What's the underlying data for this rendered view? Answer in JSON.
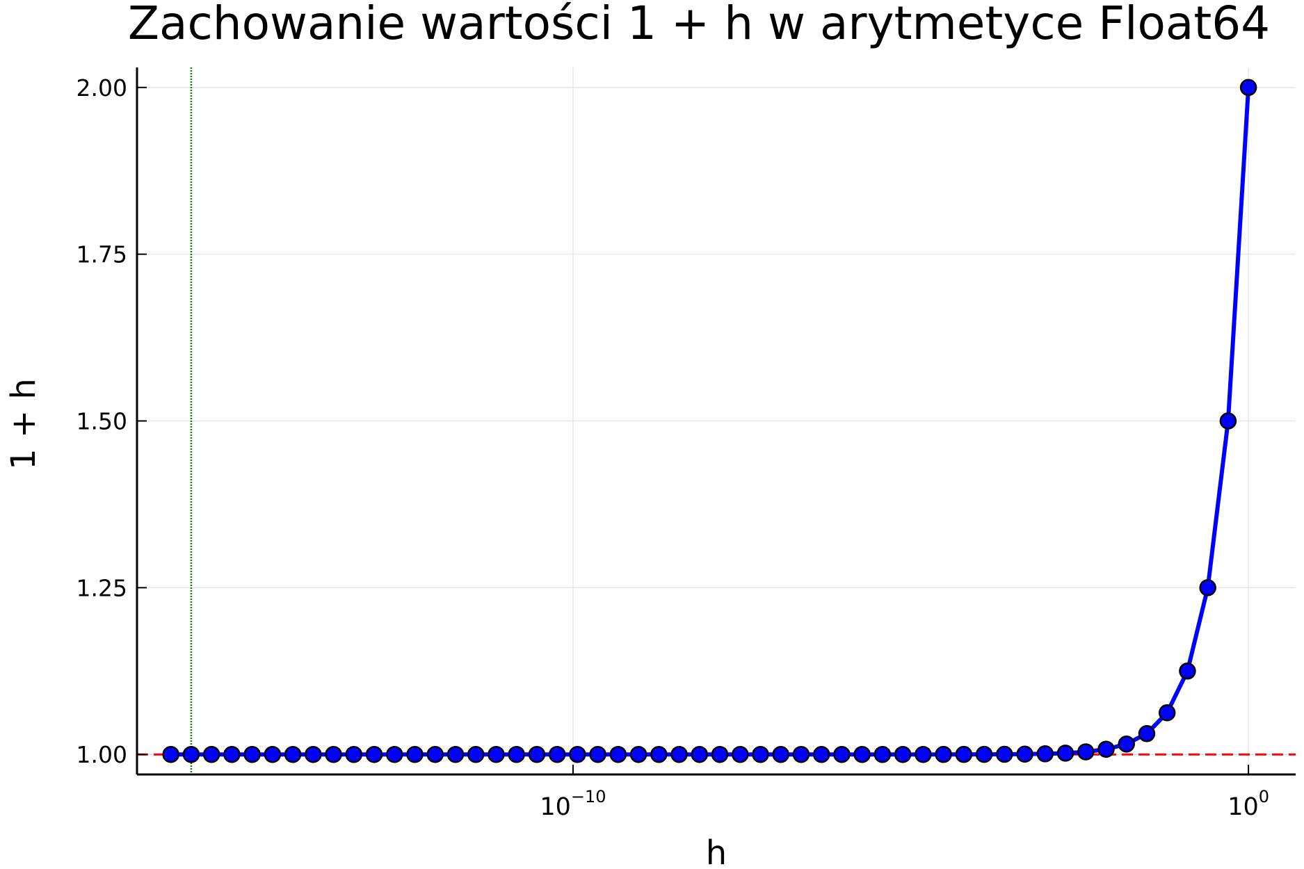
{
  "chart_data": {
    "type": "line",
    "title": "Zachowanie wartości 1 + h w arytmetyce Float64",
    "xlabel": "h",
    "ylabel": "1 + h",
    "x_scale": "log",
    "grid": true,
    "legend": "none",
    "xlim": [
      3.5e-17,
      5.0
    ],
    "ylim": [
      0.97,
      2.03
    ],
    "y_ticks": [
      {
        "value": 1.0,
        "label": "1.00"
      },
      {
        "value": 1.25,
        "label": "1.25"
      },
      {
        "value": 1.5,
        "label": "1.50"
      },
      {
        "value": 1.75,
        "label": "1.75"
      },
      {
        "value": 2.0,
        "label": "2.00"
      }
    ],
    "x_ticks": [
      {
        "value": 1e-10,
        "base": "10",
        "exponent": "−10"
      },
      {
        "value": 1,
        "base": "10",
        "exponent": "0"
      }
    ],
    "series": [
      {
        "type": "line-markers",
        "color": "#0000ff",
        "marker_edge": "#000000",
        "x": [
          1.110223e-16,
          2.220446e-16,
          4.440892e-16,
          8.881784e-16,
          1.776357e-15,
          3.552714e-15,
          7.105427e-15,
          1.421085e-14,
          2.842171e-14,
          5.684342e-14,
          1.136868e-13,
          2.273737e-13,
          4.547474e-13,
          9.094947e-13,
          1.818989e-12,
          3.637979e-12,
          7.275958e-12,
          1.455192e-11,
          2.910383e-11,
          5.820766e-11,
          1.164153e-10,
          2.328306e-10,
          4.656613e-10,
          9.313226e-10,
          1.862645e-09,
          3.72529e-09,
          7.450581e-09,
          1.490116e-08,
          2.980232e-08,
          5.960464e-08,
          1.192093e-07,
          2.384186e-07,
          4.768372e-07,
          9.536743e-07,
          1.907349e-06,
          3.814697e-06,
          7.629395e-06,
          1.525879e-05,
          3.051758e-05,
          6.103516e-05,
          0.0001220703,
          0.0002441406,
          0.0004882813,
          0.0009765625,
          0.001953125,
          0.00390625,
          0.0078125,
          0.015625,
          0.03125,
          0.0625,
          0.125,
          0.25,
          0.5,
          1.0
        ],
        "y": [
          1.0,
          1.0,
          1.0,
          1.0,
          1.0,
          1.0,
          1.0,
          1.0,
          1.0,
          1.0,
          1.0,
          1.0,
          1.0,
          1.0,
          1.0,
          1.0,
          1.0,
          1.0,
          1.0,
          1.0,
          1.0,
          1.0,
          1.0,
          1.0,
          1.0,
          1.0,
          1.0,
          1.0,
          1.0,
          1.0,
          1.0000001,
          1.0000002,
          1.0000005,
          1.000001,
          1.000002,
          1.000004,
          1.000008,
          1.000015,
          1.000031,
          1.000061,
          1.000122,
          1.000244,
          1.000488,
          1.000977,
          1.001953,
          1.003906,
          1.0078125,
          1.015625,
          1.03125,
          1.0625,
          1.125,
          1.25,
          1.5,
          2.0
        ]
      }
    ],
    "reference_lines": [
      {
        "orientation": "horizontal",
        "value": 1.0,
        "color": "#ff0000",
        "style": "dashed"
      },
      {
        "orientation": "vertical",
        "value": 2.220446e-16,
        "color": "#008000",
        "style": "dotted"
      }
    ]
  }
}
